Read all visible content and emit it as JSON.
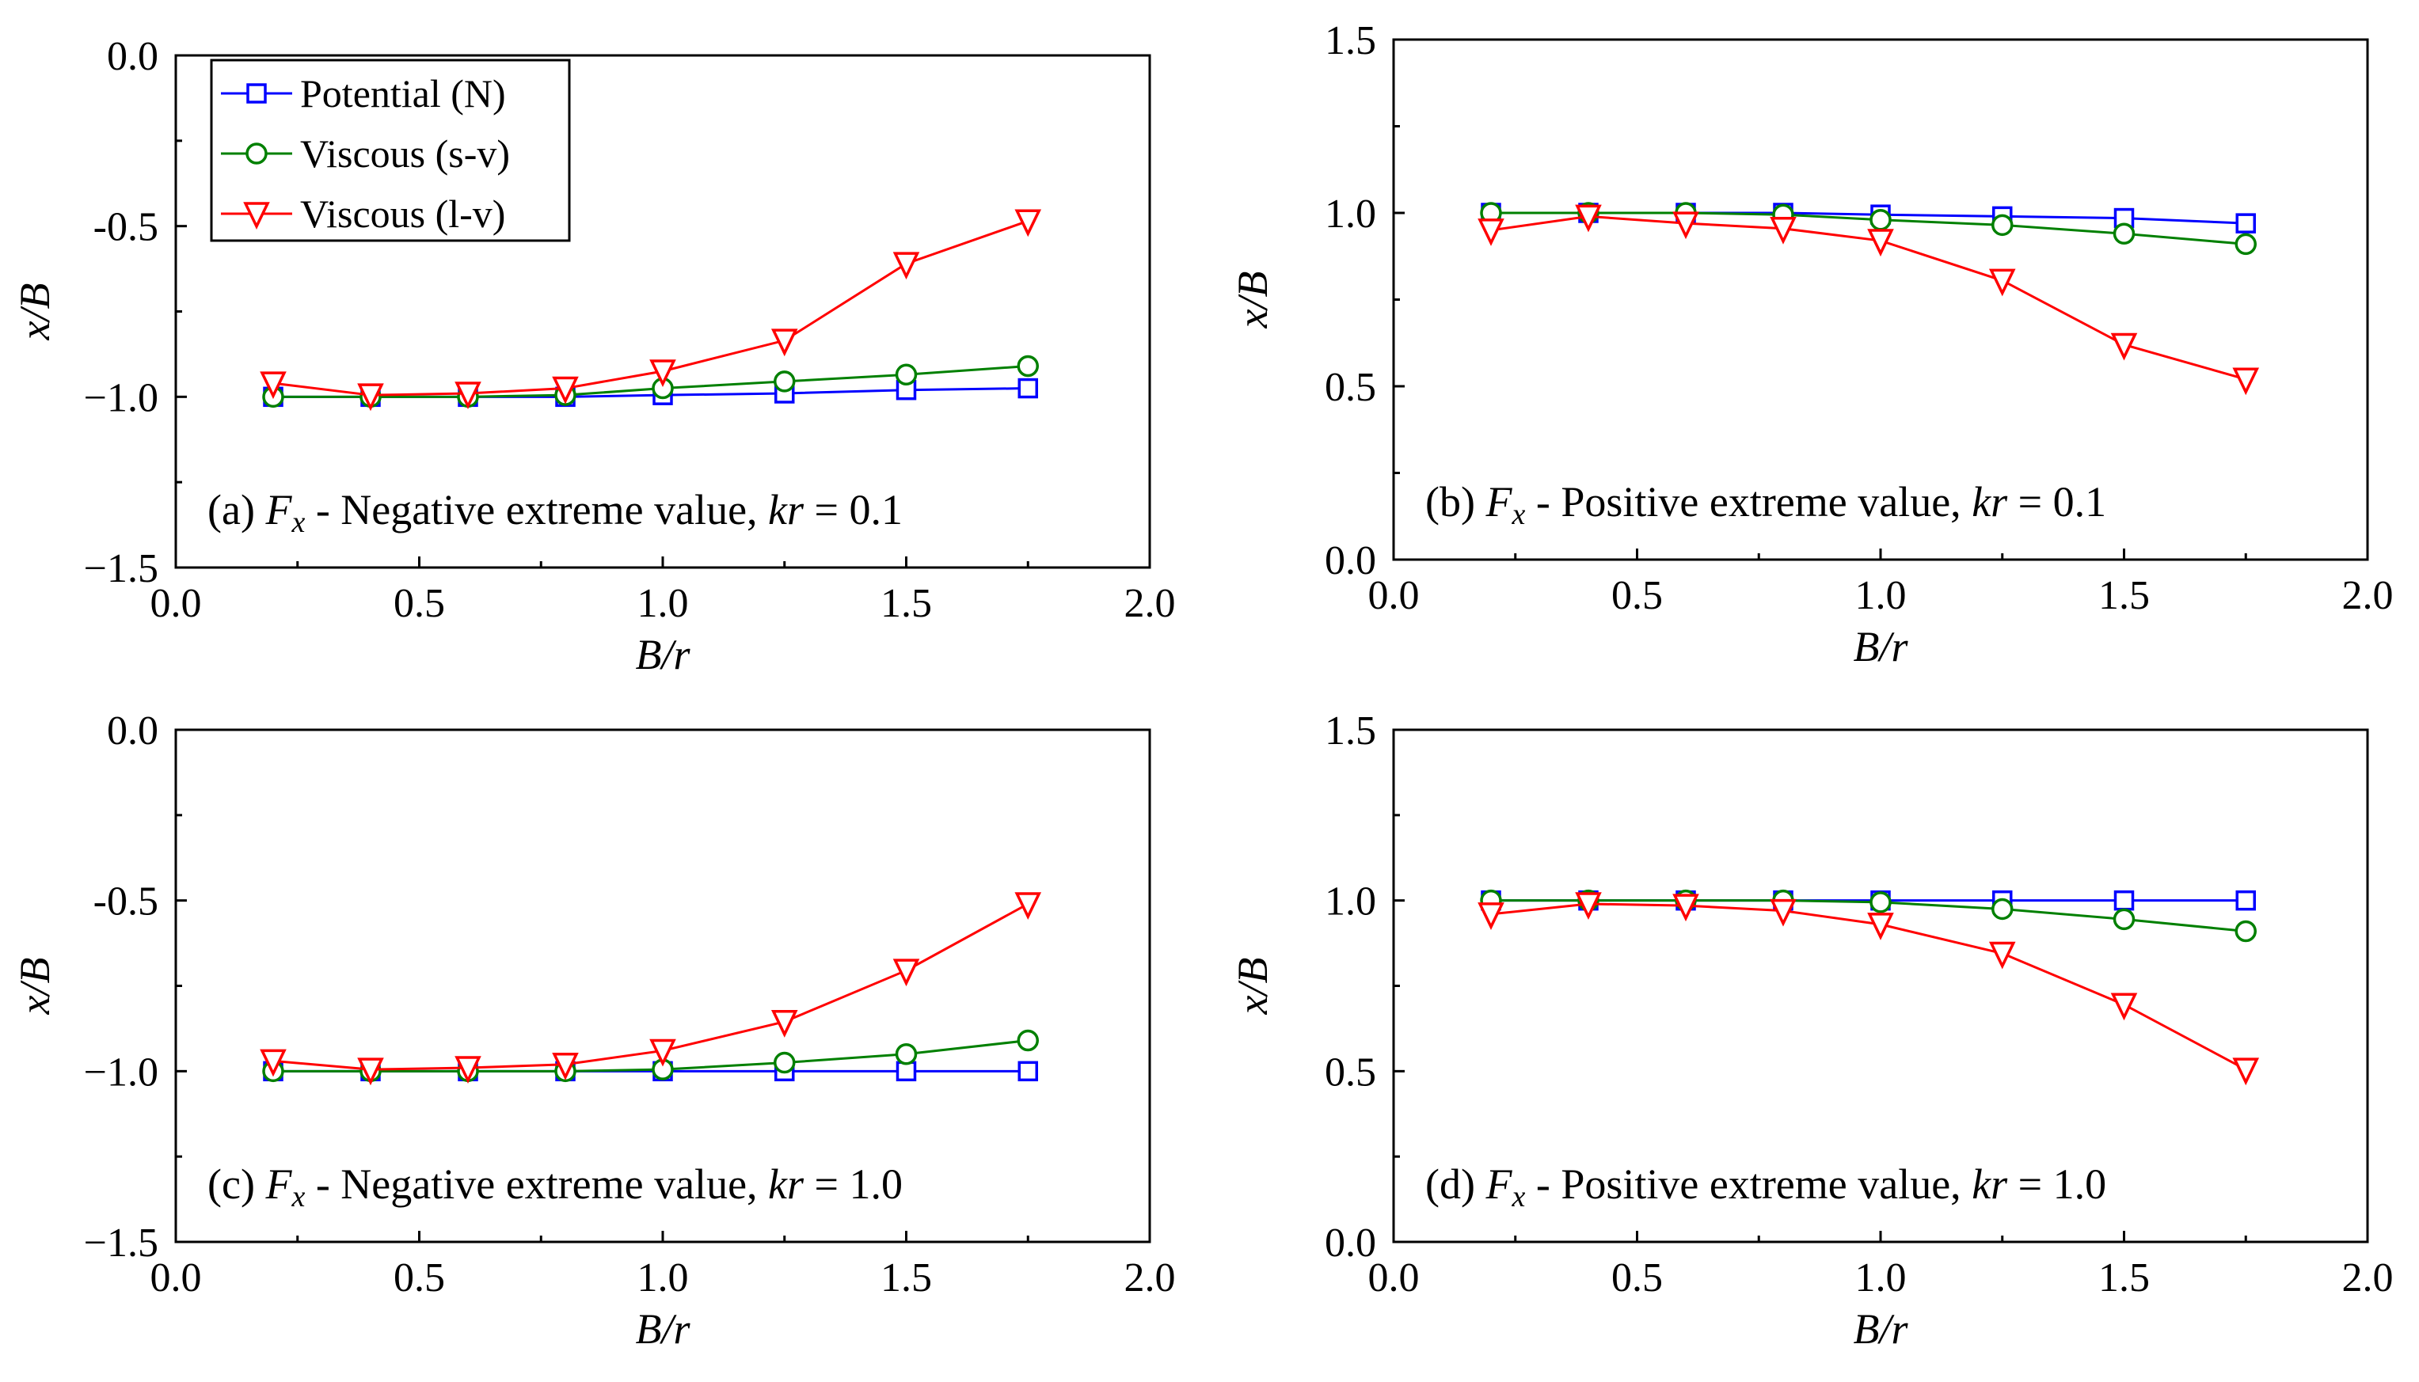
{
  "chart_data": [
    {
      "id": "a",
      "type": "line",
      "xlabel": "B/r",
      "ylabel": "x/B",
      "xlim": [
        0,
        2
      ],
      "ylim": [
        -1.5,
        0
      ],
      "xticks": [
        "0.0",
        "0.5",
        "1.0",
        "1.5",
        "2.0"
      ],
      "yticks": [
        "−1.5",
        "−1.0",
        "-0.5",
        "0.0"
      ],
      "annotation": {
        "prefix": "(a) ",
        "symbol": "F",
        "sub": "x",
        "middle": " - Negative extreme value, ",
        "param": "kr",
        "suffix": " = 0.1"
      },
      "legend": true,
      "x": [
        0.2,
        0.4,
        0.6,
        0.8,
        1.0,
        1.25,
        1.5,
        1.75
      ],
      "series": [
        {
          "name": "Potential (N)",
          "color": "#0000ff",
          "marker": "square",
          "values": [
            -1.0,
            -1.0,
            -1.0,
            -1.0,
            -0.995,
            -0.99,
            -0.98,
            -0.975
          ]
        },
        {
          "name": "Viscous (s-v)",
          "color": "#008000",
          "marker": "circle",
          "values": [
            -1.0,
            -1.0,
            -1.0,
            -0.995,
            -0.975,
            -0.955,
            -0.935,
            -0.91
          ]
        },
        {
          "name": "Viscous (l-v)",
          "color": "#ff0000",
          "marker": "triangle-down",
          "values": [
            -0.96,
            -0.995,
            -0.99,
            -0.975,
            -0.925,
            -0.835,
            -0.61,
            -0.485
          ]
        }
      ]
    },
    {
      "id": "b",
      "type": "line",
      "xlabel": "B/r",
      "ylabel": "x/B",
      "xlim": [
        0,
        2
      ],
      "ylim": [
        0,
        1.5
      ],
      "xticks": [
        "0.0",
        "0.5",
        "1.0",
        "1.5",
        "2.0"
      ],
      "yticks": [
        "0.0",
        "0.5",
        "1.0",
        "1.5"
      ],
      "annotation": {
        "prefix": "(b) ",
        "symbol": "F",
        "sub": "x",
        "middle": " - Positive extreme value, ",
        "param": "kr",
        "suffix": " = 0.1"
      },
      "legend": false,
      "x": [
        0.2,
        0.4,
        0.6,
        0.8,
        1.0,
        1.25,
        1.5,
        1.75
      ],
      "series": [
        {
          "name": "Potential (N)",
          "color": "#0000ff",
          "marker": "square",
          "values": [
            1.0,
            1.0,
            1.0,
            1.0,
            0.995,
            0.99,
            0.985,
            0.97
          ]
        },
        {
          "name": "Viscous (s-v)",
          "color": "#008000",
          "marker": "circle",
          "values": [
            1.0,
            1.0,
            1.0,
            0.995,
            0.98,
            0.965,
            0.94,
            0.91
          ]
        },
        {
          "name": "Viscous (l-v)",
          "color": "#ff0000",
          "marker": "triangle-down",
          "values": [
            0.95,
            0.99,
            0.97,
            0.955,
            0.92,
            0.805,
            0.62,
            0.52
          ]
        }
      ]
    },
    {
      "id": "c",
      "type": "line",
      "xlabel": "B/r",
      "ylabel": "x/B",
      "xlim": [
        0,
        2
      ],
      "ylim": [
        -1.5,
        0
      ],
      "xticks": [
        "0.0",
        "0.5",
        "1.0",
        "1.5",
        "2.0"
      ],
      "yticks": [
        "−1.5",
        "−1.0",
        "-0.5",
        "0.0"
      ],
      "annotation": {
        "prefix": "(c) ",
        "symbol": "F",
        "sub": "x",
        "middle": " - Negative extreme value, ",
        "param": "kr",
        "suffix": " = 1.0"
      },
      "legend": false,
      "x": [
        0.2,
        0.4,
        0.6,
        0.8,
        1.0,
        1.25,
        1.5,
        1.75
      ],
      "series": [
        {
          "name": "Potential (N)",
          "color": "#0000ff",
          "marker": "square",
          "values": [
            -1.0,
            -1.0,
            -1.0,
            -1.0,
            -1.0,
            -1.0,
            -1.0,
            -1.0
          ]
        },
        {
          "name": "Viscous (s-v)",
          "color": "#008000",
          "marker": "circle",
          "values": [
            -1.0,
            -1.0,
            -1.0,
            -1.0,
            -0.995,
            -0.975,
            -0.95,
            -0.91
          ]
        },
        {
          "name": "Viscous (l-v)",
          "color": "#ff0000",
          "marker": "triangle-down",
          "values": [
            -0.97,
            -0.995,
            -0.99,
            -0.98,
            -0.94,
            -0.855,
            -0.705,
            -0.51
          ]
        }
      ]
    },
    {
      "id": "d",
      "type": "line",
      "xlabel": "B/r",
      "ylabel": "x/B",
      "xlim": [
        0,
        2
      ],
      "ylim": [
        0,
        1.5
      ],
      "xticks": [
        "0.0",
        "0.5",
        "1.0",
        "1.5",
        "2.0"
      ],
      "yticks": [
        "0.0",
        "0.5",
        "1.0",
        "1.5"
      ],
      "annotation": {
        "prefix": "(d) ",
        "symbol": "F",
        "sub": "x",
        "middle": " - Positive extreme value, ",
        "param": "kr",
        "suffix": " = 1.0"
      },
      "legend": false,
      "x": [
        0.2,
        0.4,
        0.6,
        0.8,
        1.0,
        1.25,
        1.5,
        1.75
      ],
      "series": [
        {
          "name": "Potential (N)",
          "color": "#0000ff",
          "marker": "square",
          "values": [
            1.0,
            1.0,
            1.0,
            1.0,
            1.0,
            1.0,
            1.0,
            1.0
          ]
        },
        {
          "name": "Viscous (s-v)",
          "color": "#008000",
          "marker": "circle",
          "values": [
            1.0,
            1.0,
            1.0,
            1.0,
            0.995,
            0.975,
            0.945,
            0.91
          ]
        },
        {
          "name": "Viscous (l-v)",
          "color": "#ff0000",
          "marker": "triangle-down",
          "values": [
            0.96,
            0.99,
            0.985,
            0.97,
            0.93,
            0.845,
            0.695,
            0.505
          ]
        }
      ]
    }
  ]
}
